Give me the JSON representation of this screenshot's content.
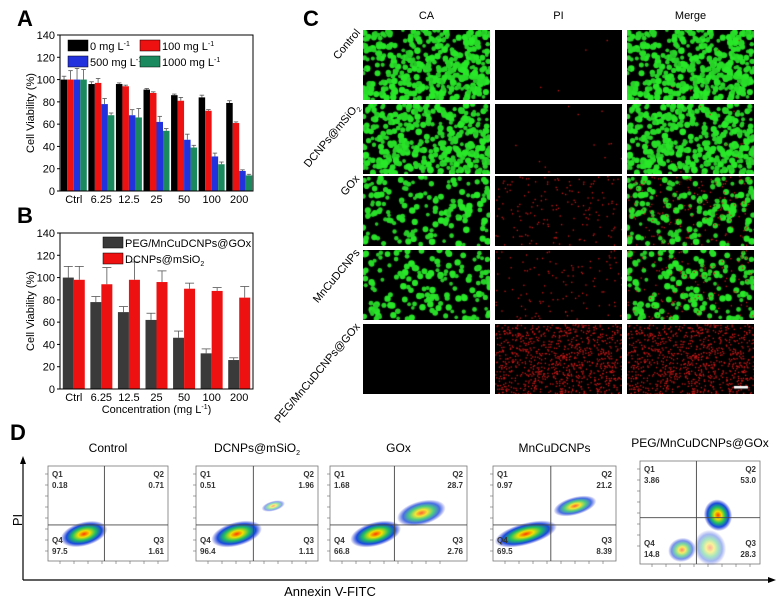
{
  "panels": {
    "a": "A",
    "b": "B",
    "c": "C",
    "d": "D"
  },
  "chart_data": [
    {
      "type": "bar",
      "panel": "A",
      "ylabel": "Cell Viability (%)",
      "xlabel": "Concentration (mg L",
      "xlabel_sup": "-1",
      "xlabel_end": ")",
      "ylim": [
        0,
        140
      ],
      "yticks": [
        0,
        20,
        40,
        60,
        80,
        100,
        120,
        140
      ],
      "categories": [
        "Ctrl",
        "6.25",
        "12.5",
        "25",
        "50",
        "100",
        "200"
      ],
      "series": [
        {
          "name": "0 mg L",
          "sup": "-1",
          "color": "#000000",
          "values": [
            100,
            96,
            96,
            91,
            86,
            84,
            79
          ],
          "errors": [
            3,
            2,
            1,
            1,
            1,
            2,
            2
          ]
        },
        {
          "name": "100 mg L",
          "sup": "-1",
          "color": "#ee1111",
          "values": [
            100,
            97,
            94,
            88,
            81,
            72,
            61
          ],
          "errors": [
            8,
            4,
            1,
            1,
            3,
            1,
            1
          ]
        },
        {
          "name": "500 mg L",
          "sup": "-1",
          "color": "#2233dd",
          "values": [
            100,
            78,
            68,
            62,
            46,
            31,
            18
          ],
          "errors": [
            10,
            5,
            5,
            5,
            5,
            3,
            1
          ]
        },
        {
          "name": "1000 mg L",
          "sup": "-1",
          "color": "#1a8a5e",
          "values": [
            100,
            68,
            66,
            54,
            39,
            24,
            14
          ],
          "errors": [
            9,
            2,
            8,
            2,
            2,
            2,
            1
          ]
        }
      ]
    },
    {
      "type": "bar",
      "panel": "B",
      "ylabel": "Cell Viability (%)",
      "xlabel": "Concentration (mg L",
      "xlabel_sup": "-1",
      "xlabel_end": ")",
      "ylim": [
        0,
        140
      ],
      "yticks": [
        0,
        20,
        40,
        60,
        80,
        100,
        120,
        140
      ],
      "categories": [
        "Ctrl",
        "6.25",
        "12.5",
        "25",
        "50",
        "100",
        "200"
      ],
      "series": [
        {
          "name": "PEG/MnCuDCNPs@GOx",
          "color": "#3a3a3a",
          "values": [
            100,
            78,
            69,
            62,
            46,
            32,
            26
          ],
          "errors": [
            10,
            5,
            5,
            6,
            6,
            4,
            2
          ]
        },
        {
          "name": "DCNPs@mSiO",
          "sub": "2",
          "color": "#ee1111",
          "values": [
            98,
            94,
            98,
            96,
            90,
            88,
            82
          ],
          "errors": [
            12,
            15,
            16,
            10,
            5,
            3,
            10
          ]
        }
      ]
    }
  ],
  "microscopy": {
    "columns": [
      "CA",
      "PI",
      "Merge"
    ],
    "rows": [
      {
        "label": "Control"
      },
      {
        "label": "DCNPs@mSiO",
        "sub": "2"
      },
      {
        "label": "GOx"
      },
      {
        "label": "MnCuDCNPs"
      },
      {
        "label": "PEG/MnCuDCNPs@GOx"
      }
    ]
  },
  "flow": {
    "xlabel": "Annexin V-FITC",
    "ylabel": "PI",
    "plots": [
      {
        "title": "Control",
        "q1": "0.18",
        "q2": "0.71",
        "q3": "1.61",
        "q4": "97.5"
      },
      {
        "title": "DCNPs@mSiO",
        "sub": "2",
        "q1": "0.51",
        "q2": "1.96",
        "q3": "1.11",
        "q4": "96.4"
      },
      {
        "title": "GOx",
        "q1": "1.68",
        "q2": "28.7",
        "q3": "2.76",
        "q4": "66.8"
      },
      {
        "title": "MnCuDCNPs",
        "q1": "0.97",
        "q2": "21.2",
        "q3": "8.39",
        "q4": "69.5"
      },
      {
        "title": "PEG/MnCuDCNPs@GOx",
        "q1": "3.86",
        "q2": "53.0",
        "q3": "28.3",
        "q4": "14.8"
      }
    ],
    "quadrant_names": [
      "Q1",
      "Q2",
      "Q3",
      "Q4"
    ]
  }
}
